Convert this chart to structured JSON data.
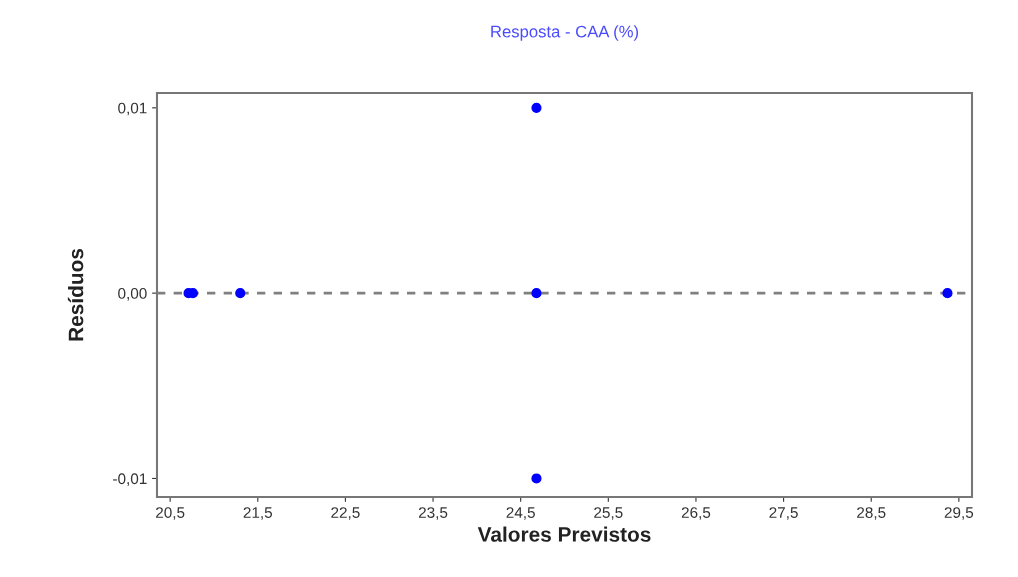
{
  "chart_data": {
    "type": "scatter",
    "title": "Resposta - CAA (%)",
    "xlabel": "Valores Previstos",
    "ylabel": "Resíduos",
    "x": [
      20.71,
      20.76,
      21.3,
      24.68,
      24.68,
      24.68,
      29.37
    ],
    "values": [
      0,
      0,
      0,
      0.01,
      0,
      -0.01,
      0
    ],
    "color": "#0000ff",
    "marker": "circle",
    "grid": false,
    "legend": false,
    "xlim": [
      20.35,
      29.65
    ],
    "ylim": [
      -0.011,
      0.0108
    ],
    "xticks": [
      {
        "value": 20.5,
        "label": "20,5"
      },
      {
        "value": 21.5,
        "label": "21,5"
      },
      {
        "value": 22.5,
        "label": "22,5"
      },
      {
        "value": 23.5,
        "label": "23,5"
      },
      {
        "value": 24.5,
        "label": "24,5"
      },
      {
        "value": 25.5,
        "label": "25,5"
      },
      {
        "value": 26.5,
        "label": "26,5"
      },
      {
        "value": 27.5,
        "label": "27,5"
      },
      {
        "value": 28.5,
        "label": "28,5"
      },
      {
        "value": 29.5,
        "label": "29,5"
      }
    ],
    "yticks": [
      {
        "value": -0.01,
        "label": "-0,01"
      },
      {
        "value": 0,
        "label": "0,00"
      },
      {
        "value": 0.01,
        "label": "0,01"
      }
    ],
    "ref_lines": [
      {
        "axis": "y",
        "value": 0,
        "color": "#808080",
        "line_style": "dashed"
      }
    ]
  }
}
